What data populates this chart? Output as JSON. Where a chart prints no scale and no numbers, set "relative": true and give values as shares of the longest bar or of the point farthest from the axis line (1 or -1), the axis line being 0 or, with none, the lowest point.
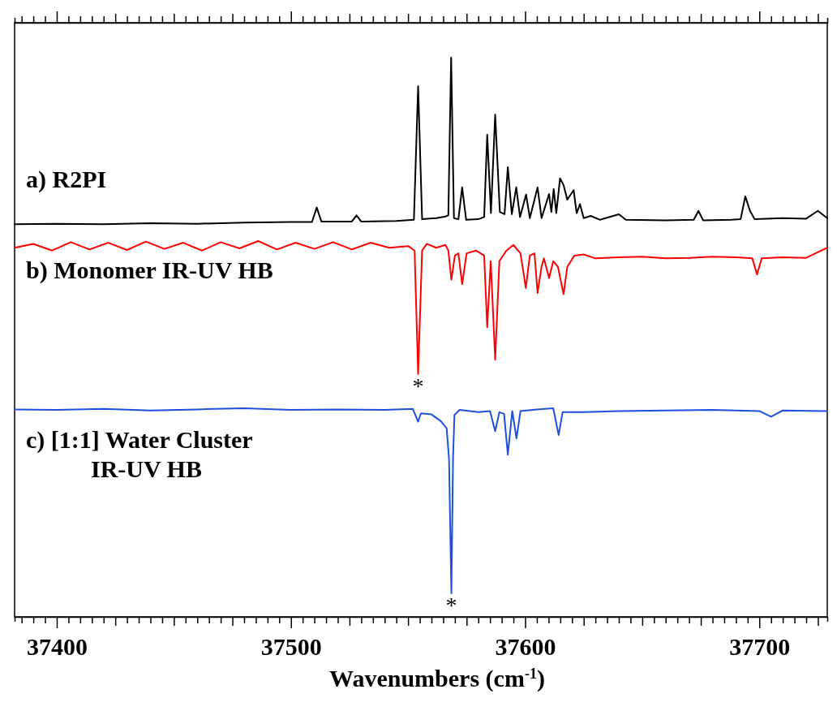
{
  "chart_data": {
    "type": "line",
    "relative": true,
    "xlabel": "Wavenumbers (cm$^{-1}$)",
    "xlim": [
      37382,
      37729
    ],
    "xticks": [
      {
        "value": 37385,
        "label": null
      },
      {
        "value": 37390,
        "label": null
      },
      {
        "value": 37395,
        "label": null
      },
      37400,
      {
        "value": 37405,
        "label": null
      },
      {
        "value": 37410,
        "label": null
      },
      {
        "value": 37415,
        "label": null
      },
      {
        "value": 37420,
        "label": null
      },
      {
        "value": 37425,
        "label": null
      },
      {
        "value": 37430,
        "label": null
      },
      {
        "value": 37435,
        "label": null
      },
      {
        "value": 37440,
        "label": null
      },
      {
        "value": 37445,
        "label": null
      },
      {
        "value": 37450,
        "label": null
      },
      {
        "value": 37455,
        "label": null
      },
      {
        "value": 37460,
        "label": null
      },
      {
        "value": 37465,
        "label": null
      },
      {
        "value": 37470,
        "label": null
      },
      {
        "value": 37475,
        "label": null
      },
      {
        "value": 37480,
        "label": null
      },
      {
        "value": 37485,
        "label": null
      },
      {
        "value": 37490,
        "label": null
      },
      {
        "value": 37495,
        "label": null
      },
      37500,
      {
        "value": 37505,
        "label": null
      },
      {
        "value": 37510,
        "label": null
      },
      {
        "value": 37515,
        "label": null
      },
      {
        "value": 37520,
        "label": null
      },
      {
        "value": 37525,
        "label": null
      },
      {
        "value": 37530,
        "label": null
      },
      {
        "value": 37535,
        "label": null
      },
      {
        "value": 37540,
        "label": null
      },
      {
        "value": 37545,
        "label": null
      },
      {
        "value": 37550,
        "label": null
      },
      {
        "value": 37555,
        "label": null
      },
      {
        "value": 37560,
        "label": null
      },
      {
        "value": 37565,
        "label": null
      },
      {
        "value": 37570,
        "label": null
      },
      {
        "value": 37575,
        "label": null
      },
      {
        "value": 37580,
        "label": null
      },
      {
        "value": 37585,
        "label": null
      },
      {
        "value": 37590,
        "label": null
      },
      {
        "value": 37595,
        "label": null
      },
      37600,
      {
        "value": 37605,
        "label": null
      },
      {
        "value": 37610,
        "label": null
      },
      {
        "value": 37615,
        "label": null
      },
      {
        "value": 37620,
        "label": null
      },
      {
        "value": 37625,
        "label": null
      },
      {
        "value": 37630,
        "label": null
      },
      {
        "value": 37635,
        "label": null
      },
      {
        "value": 37640,
        "label": null
      },
      {
        "value": 37645,
        "label": null
      },
      {
        "value": 37650,
        "label": null
      },
      {
        "value": 37655,
        "label": null
      },
      {
        "value": 37660,
        "label": null
      },
      {
        "value": 37665,
        "label": null
      },
      {
        "value": 37670,
        "label": null
      },
      {
        "value": 37675,
        "label": null
      },
      {
        "value": 37680,
        "label": null
      },
      {
        "value": 37685,
        "label": null
      },
      {
        "value": 37690,
        "label": null
      },
      {
        "value": 37695,
        "label": null
      },
      37700,
      {
        "value": 37705,
        "label": null
      },
      {
        "value": 37710,
        "label": null
      },
      {
        "value": 37715,
        "label": null
      },
      {
        "value": 37720,
        "label": null
      },
      {
        "value": 37725,
        "label": null
      }
    ],
    "series": [
      {
        "name": "a) R2PI",
        "color": "#000000",
        "x": [
          37382,
          37400,
          37420,
          37440,
          37460,
          37480,
          37500,
          37509,
          37511,
          37513,
          37526,
          37528,
          37530,
          37545,
          37552.5,
          37554.3,
          37556,
          37562,
          37566,
          37567.2,
          37568.4,
          37569.6,
          37571.5,
          37573.1,
          37574.8,
          37580,
          37582.5,
          37583.8,
          37585.4,
          37587.2,
          37589.2,
          37591.2,
          37592.6,
          37594.3,
          37596.2,
          37597.8,
          37600.4,
          37602,
          37605.3,
          37607,
          37610.2,
          37611.2,
          37612.2,
          37613.3,
          37614.9,
          37616.4,
          37618,
          37620.7,
          37622,
          37623.4,
          37625,
          37628,
          37632,
          37640,
          37643,
          37660,
          37672,
          37674,
          37676,
          37688,
          37692,
          37694,
          37696,
          37698,
          37710,
          37720,
          37725,
          37729
        ],
        "values": [
          0.702,
          0.703,
          0.702,
          0.704,
          0.703,
          0.705,
          0.706,
          0.706,
          0.732,
          0.707,
          0.707,
          0.718,
          0.707,
          0.708,
          0.71,
          0.949,
          0.711,
          0.713,
          0.716,
          0.718,
          1.0,
          0.713,
          0.711,
          0.768,
          0.71,
          0.711,
          0.715,
          0.862,
          0.722,
          0.898,
          0.724,
          0.72,
          0.804,
          0.72,
          0.768,
          0.715,
          0.755,
          0.713,
          0.768,
          0.713,
          0.756,
          0.724,
          0.765,
          0.722,
          0.784,
          0.772,
          0.746,
          0.763,
          0.722,
          0.738,
          0.713,
          0.717,
          0.71,
          0.72,
          0.71,
          0.709,
          0.71,
          0.726,
          0.709,
          0.71,
          0.711,
          0.752,
          0.726,
          0.711,
          0.713,
          0.712,
          0.726,
          0.713
        ]
      },
      {
        "name": "b) Monomer IR-UV HB",
        "color": "#ff0000",
        "x": [
          37382,
          37390,
          37398,
          37406,
          37414,
          37422,
          37430,
          37438,
          37446,
          37454,
          37462,
          37470,
          37478,
          37486,
          37494,
          37502,
          37510,
          37518,
          37526,
          37534,
          37542,
          37550,
          37552.8,
          37554.3,
          37556,
          37558,
          37562,
          37566,
          37567.2,
          37568.5,
          37570,
          37571.5,
          37573.1,
          37575,
          37579,
          37582.5,
          37583.8,
          37585.3,
          37587.2,
          37589,
          37592,
          37595,
          37598,
          37600.3,
          37602,
          37604,
          37605.3,
          37607,
          37608,
          37610.2,
          37612,
          37614,
          37616.4,
          37618,
          37621,
          37625,
          37630,
          37640,
          37650,
          37660,
          37670,
          37680,
          37690,
          37697,
          37699,
          37701,
          37710,
          37720,
          37729
        ],
        "values": [
          0.66,
          0.667,
          0.655,
          0.67,
          0.657,
          0.669,
          0.656,
          0.671,
          0.658,
          0.669,
          0.655,
          0.67,
          0.659,
          0.672,
          0.657,
          0.669,
          0.658,
          0.67,
          0.657,
          0.669,
          0.66,
          0.663,
          0.655,
          0.434,
          0.655,
          0.667,
          0.66,
          0.665,
          0.655,
          0.603,
          0.646,
          0.65,
          0.595,
          0.65,
          0.655,
          0.646,
          0.518,
          0.636,
          0.46,
          0.636,
          0.655,
          0.665,
          0.65,
          0.588,
          0.646,
          0.65,
          0.579,
          0.626,
          0.641,
          0.606,
          0.636,
          0.626,
          0.577,
          0.626,
          0.646,
          0.648,
          0.641,
          0.643,
          0.644,
          0.641,
          0.642,
          0.644,
          0.643,
          0.641,
          0.612,
          0.641,
          0.643,
          0.642,
          0.66
        ]
      },
      {
        "name": "c) [1:1] Water Cluster\nIR-UV HB",
        "color": "#1f4fe0",
        "x": [
          37382,
          37400,
          37420,
          37440,
          37460,
          37480,
          37500,
          37520,
          37540,
          37552,
          37554.3,
          37555.5,
          37560,
          37564,
          37566.5,
          37567.5,
          37568.5,
          37569.2,
          37569.8,
          37572,
          37580,
          37585,
          37587.2,
          37589,
          37591,
          37592.6,
          37594.5,
          37596.3,
          37598,
          37605,
          37612,
          37614.3,
          37616,
          37625,
          37640,
          37660,
          37680,
          37700,
          37705,
          37710,
          37729
        ],
        "values": [
          0.371,
          0.37,
          0.372,
          0.369,
          0.371,
          0.373,
          0.37,
          0.371,
          0.37,
          0.372,
          0.349,
          0.364,
          0.362,
          0.35,
          0.337,
          0.282,
          0.042,
          0.282,
          0.361,
          0.37,
          0.366,
          0.368,
          0.332,
          0.366,
          0.363,
          0.29,
          0.368,
          0.319,
          0.368,
          0.371,
          0.373,
          0.325,
          0.366,
          0.366,
          0.368,
          0.369,
          0.37,
          0.368,
          0.358,
          0.369,
          0.368
        ]
      }
    ],
    "annotations": [
      {
        "text": "*",
        "x": 37554.3,
        "y": 0.434
      },
      {
        "text": "*",
        "x": 37568.5,
        "y": 0.042
      }
    ],
    "grid": false,
    "legend": false
  }
}
